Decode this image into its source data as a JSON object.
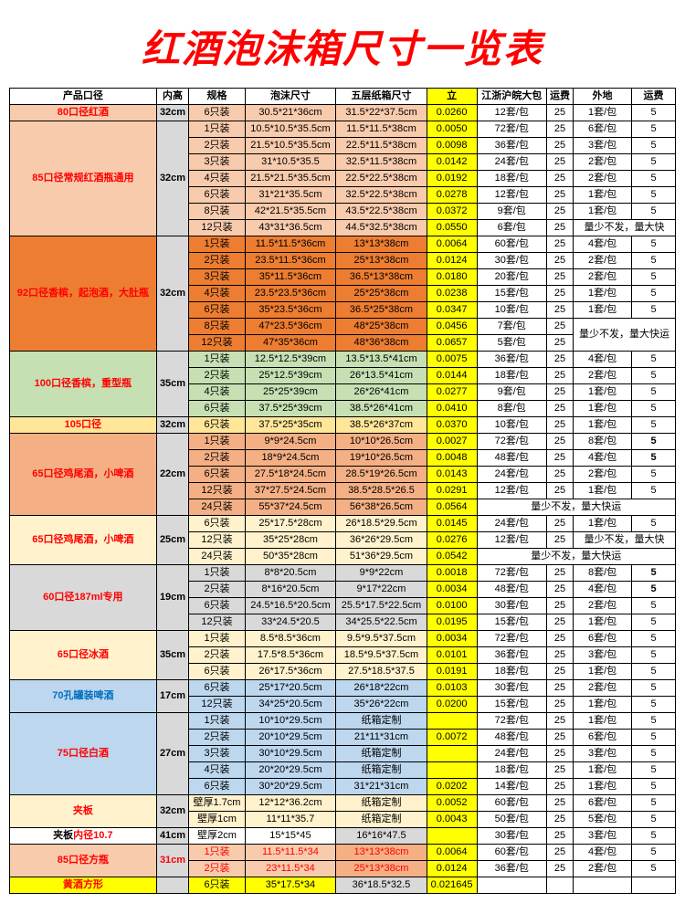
{
  "title": "红酒泡沫箱尺寸一览表",
  "headers": [
    "产品口径",
    "内高",
    "规格",
    "泡沫尺寸",
    "五层纸箱尺寸",
    "立",
    "江浙沪皖大包",
    "运费",
    "外地",
    "运费"
  ],
  "colors": {
    "title": "#ff0000",
    "yellow": "#ffff00",
    "pink": "#f8cbad",
    "orange": "#ed7d31",
    "green": "#c6e0b4",
    "tan": "#fff2cc",
    "gold": "#f4b084",
    "gray": "#d9d9d9",
    "blue": "#bdd7ee"
  },
  "groups": [
    {
      "cat": "80口径红酒",
      "catBg": "bg-pink",
      "height": "32cm",
      "rows": [
        {
          "spec": "6只装",
          "foam": "30.5*21*36cm",
          "box": "31.5*22*37.5cm",
          "vol": "0.0260",
          "pack": "12套/包",
          "fee1": "25",
          "out": "1套/包",
          "fee2": "5"
        }
      ]
    },
    {
      "cat": "85口径常规红酒瓶通用",
      "catBg": "bg-pink",
      "height": "32cm",
      "rows": [
        {
          "spec": "1只装",
          "foam": "10.5*10.5*35.5cm",
          "box": "11.5*11.5*38cm",
          "vol": "0.0050",
          "pack": "72套/包",
          "fee1": "25",
          "out": "6套/包",
          "fee2": "5"
        },
        {
          "spec": "2只装",
          "foam": "21.5*10.5*35.5cm",
          "box": "22.5*11.5*38cm",
          "vol": "0.0098",
          "pack": "36套/包",
          "fee1": "25",
          "out": "3套/包",
          "fee2": "5"
        },
        {
          "spec": "3只装",
          "foam": "31*10.5*35.5",
          "box": "32.5*11.5*38cm",
          "vol": "0.0142",
          "pack": "24套/包",
          "fee1": "25",
          "out": "2套/包",
          "fee2": "5"
        },
        {
          "spec": "4只装",
          "foam": "21.5*21.5*35.5cm",
          "box": "22.5*22.5*38cm",
          "vol": "0.0192",
          "pack": "18套/包",
          "fee1": "25",
          "out": "2套/包",
          "fee2": "5"
        },
        {
          "spec": "6只装",
          "foam": "31*21*35.5cm",
          "box": "32.5*22.5*38cm",
          "vol": "0.0278",
          "pack": "12套/包",
          "fee1": "25",
          "out": "1套/包",
          "fee2": "5"
        },
        {
          "spec": "8只装",
          "foam": "42*21.5*35.5cm",
          "box": "43.5*22.5*38cm",
          "vol": "0.0372",
          "pack": "9套/包",
          "fee1": "25",
          "out": "1套/包",
          "fee2": "5"
        },
        {
          "spec": "12只装",
          "foam": "43*31*36.5cm",
          "box": "44.5*32.5*38cm",
          "vol": "0.0550",
          "pack": "6套/包",
          "fee1": "25",
          "out": "量少不发，量大快",
          "fee2": "",
          "outSpan": 2
        }
      ]
    },
    {
      "cat": "92口径香槟，起泡酒，大肚瓶",
      "catBg": "bg-orange",
      "height": "32cm",
      "rows": [
        {
          "spec": "1只装",
          "foam": "11.5*11.5*36cm",
          "box": "13*13*38cm",
          "vol": "0.0064",
          "pack": "60套/包",
          "fee1": "25",
          "out": "4套/包",
          "fee2": "5"
        },
        {
          "spec": "2只装",
          "foam": "23.5*11.5*36cm",
          "box": "25*13*38cm",
          "vol": "0.0124",
          "pack": "30套/包",
          "fee1": "25",
          "out": "2套/包",
          "fee2": "5"
        },
        {
          "spec": "3只装",
          "foam": "35*11.5*36cm",
          "box": "36.5*13*38cm",
          "vol": "0.0180",
          "pack": "20套/包",
          "fee1": "25",
          "out": "2套/包",
          "fee2": "5"
        },
        {
          "spec": "4只装",
          "foam": "23.5*23.5*36cm",
          "box": "25*25*38cm",
          "vol": "0.0238",
          "pack": "15套/包",
          "fee1": "25",
          "out": "1套/包",
          "fee2": "5"
        },
        {
          "spec": "6只装",
          "foam": "35*23.5*36cm",
          "box": "36.5*25*38cm",
          "vol": "0.0347",
          "pack": "10套/包",
          "fee1": "25",
          "out": "1套/包",
          "fee2": "5"
        },
        {
          "spec": "8只装",
          "foam": "47*23.5*36cm",
          "box": "48*25*38cm",
          "vol": "0.0456",
          "pack": "7套/包",
          "fee1": "25",
          "out": "量少不发，量大快运",
          "fee2": "",
          "outSpan": 2,
          "outRowSpan": 2
        },
        {
          "spec": "12只装",
          "foam": "47*35*36cm",
          "box": "48*36*38cm",
          "vol": "0.0657",
          "pack": "5套/包",
          "fee1": "25",
          "noOut": true
        }
      ]
    },
    {
      "cat": "100口径香槟，重型瓶",
      "catBg": "bg-green",
      "height": "35cm",
      "rows": [
        {
          "spec": "1只装",
          "foam": "12.5*12.5*39cm",
          "box": "13.5*13.5*41cm",
          "vol": "0.0075",
          "pack": "36套/包",
          "fee1": "25",
          "out": "4套/包",
          "fee2": "5"
        },
        {
          "spec": "2只装",
          "foam": "25*12.5*39cm",
          "box": "26*13.5*41cm",
          "vol": "0.0144",
          "pack": "18套/包",
          "fee1": "25",
          "out": "2套/包",
          "fee2": "5"
        },
        {
          "spec": "4只装",
          "foam": "25*25*39cm",
          "box": "26*26*41cm",
          "vol": "0.0277",
          "pack": "9套/包",
          "fee1": "25",
          "out": "1套/包",
          "fee2": "5"
        },
        {
          "spec": "6只装",
          "foam": "37.5*25*39cm",
          "box": "38.5*26*41cm",
          "vol": "0.0410",
          "pack": "8套/包",
          "fee1": "25",
          "out": "1套/包",
          "fee2": "5"
        }
      ]
    },
    {
      "cat": "105口径",
      "catBg": "bg-yel2",
      "height": "32cm",
      "rows": [
        {
          "spec": "6只装",
          "foam": "37.5*25*35cm",
          "box": "38.5*26*37cm",
          "vol": "0.0370",
          "pack": "10套/包",
          "fee1": "25",
          "out": "1套/包",
          "fee2": "5"
        }
      ]
    },
    {
      "cat": "65口径鸡尾酒，小啤酒",
      "catBg": "bg-gold",
      "height": "22cm",
      "rows": [
        {
          "spec": "1只装",
          "foam": "9*9*24.5cm",
          "box": "10*10*26.5cm",
          "vol": "0.0027",
          "pack": "72套/包",
          "fee1": "25",
          "out": "8套/包",
          "fee2": "5",
          "fee2Bold": true
        },
        {
          "spec": "2只装",
          "foam": "18*9*24.5cm",
          "box": "19*10*26.5cm",
          "vol": "0.0048",
          "pack": "48套/包",
          "fee1": "25",
          "out": "4套/包",
          "fee2": "5",
          "fee2Bold": true
        },
        {
          "spec": "6只装",
          "foam": "27.5*18*24.5cm",
          "box": "28.5*19*26.5cm",
          "vol": "0.0143",
          "pack": "24套/包",
          "fee1": "25",
          "out": "2套/包",
          "fee2": "5"
        },
        {
          "spec": "12只装",
          "foam": "37*27.5*24.5cm",
          "box": "38.5*28.5*26.5",
          "vol": "0.0291",
          "pack": "12套/包",
          "fee1": "25",
          "out": "1套/包",
          "fee2": "5"
        },
        {
          "spec": "24只装",
          "foam": "55*37*24.5cm",
          "box": "56*38*26.5cm",
          "vol": "0.0564",
          "pack": "量少不发，量大快运",
          "fee1": "",
          "out": "",
          "fee2": "",
          "packSpan": 4
        }
      ]
    },
    {
      "cat": "65口径鸡尾酒，小啤酒",
      "catBg": "bg-tan",
      "height": "25cm",
      "rows": [
        {
          "spec": "6只装",
          "foam": "25*17.5*28cm",
          "box": "26*18.5*29.5cm",
          "vol": "0.0145",
          "pack": "24套/包",
          "fee1": "25",
          "out": "1套/包",
          "fee2": "5"
        },
        {
          "spec": "12只装",
          "foam": "35*25*28cm",
          "box": "36*26*29.5cm",
          "vol": "0.0276",
          "pack": "12套/包",
          "fee1": "25",
          "out": "量少不发，量大快",
          "fee2": "",
          "outSpan": 2
        },
        {
          "spec": "24只装",
          "foam": "50*35*28cm",
          "box": "51*36*29.5cm",
          "vol": "0.0542",
          "pack": "量少不发，量大快运",
          "fee1": "",
          "out": "",
          "fee2": "",
          "packSpan": 4
        }
      ]
    },
    {
      "cat": "60口径187ml专用",
      "catBg": "bg-gray",
      "height": "19cm",
      "rows": [
        {
          "spec": "1只装",
          "foam": "8*8*20.5cm",
          "box": "9*9*22cm",
          "vol": "0.0018",
          "pack": "72套/包",
          "fee1": "25",
          "out": "8套/包",
          "fee2": "5",
          "fee2Bold": true
        },
        {
          "spec": "2只装",
          "foam": "8*16*20.5cm",
          "box": "9*17*22cm",
          "vol": "0.0034",
          "pack": "48套/包",
          "fee1": "25",
          "out": "4套/包",
          "fee2": "5",
          "fee2Bold": true
        },
        {
          "spec": "6只装",
          "foam": "24.5*16.5*20.5cm",
          "box": "25.5*17.5*22.5cm",
          "vol": "0.0100",
          "pack": "30套/包",
          "fee1": "25",
          "out": "2套/包",
          "fee2": "5"
        },
        {
          "spec": "12只装",
          "foam": "33*24.5*20.5",
          "box": "34*25.5*22.5cm",
          "vol": "0.0195",
          "pack": "15套/包",
          "fee1": "25",
          "out": "1套/包",
          "fee2": "5"
        }
      ]
    },
    {
      "cat": "65口径冰酒",
      "catBg": "bg-tan",
      "height": "35cm",
      "rows": [
        {
          "spec": "1只装",
          "foam": "8.5*8.5*36cm",
          "box": "9.5*9.5*37.5cm",
          "vol": "0.0034",
          "pack": "72套/包",
          "fee1": "25",
          "out": "6套/包",
          "fee2": "5"
        },
        {
          "spec": "2只装",
          "foam": "17.5*8.5*36cm",
          "box": "18.5*9.5*37.5cm",
          "vol": "0.0101",
          "pack": "36套/包",
          "fee1": "25",
          "out": "3套/包",
          "fee2": "5"
        },
        {
          "spec": "6只装",
          "foam": "26*17.5*36cm",
          "box": "27.5*18.5*37.5",
          "vol": "0.0191",
          "pack": "18套/包",
          "fee1": "25",
          "out": "1套/包",
          "fee2": "5"
        }
      ]
    },
    {
      "cat": "70孔罐装啤酒",
      "catBg": "bg-blue",
      "height": "17cm",
      "catBlue": true,
      "rows": [
        {
          "spec": "6只装",
          "foam": "25*17*20.5cm",
          "box": "26*18*22cm",
          "vol": "0.0103",
          "pack": "30套/包",
          "fee1": "25",
          "out": "2套/包",
          "fee2": "5"
        },
        {
          "spec": "12只装",
          "foam": "34*25*20.5cm",
          "box": "35*26*22cm",
          "vol": "0.0200",
          "pack": "15套/包",
          "fee1": "25",
          "out": "1套/包",
          "fee2": "5"
        }
      ]
    },
    {
      "cat": "75口径白酒",
      "catBg": "bg-blue",
      "height": "27cm",
      "rows": [
        {
          "spec": "1只装",
          "foam": "10*10*29.5cm",
          "box": "纸箱定制",
          "vol": "",
          "pack": "72套/包",
          "fee1": "25",
          "out": "1套/包",
          "fee2": "5"
        },
        {
          "spec": "2只装",
          "foam": "20*10*29.5cm",
          "box": "21*11*31cm",
          "vol": "0.0072",
          "pack": "48套/包",
          "fee1": "25",
          "out": "6套/包",
          "fee2": "5"
        },
        {
          "spec": "3只装",
          "foam": "30*10*29.5cm",
          "box": "纸箱定制",
          "vol": "",
          "pack": "24套/包",
          "fee1": "25",
          "out": "3套/包",
          "fee2": "5"
        },
        {
          "spec": "4只装",
          "foam": "20*20*29.5cm",
          "box": "纸箱定制",
          "vol": "",
          "pack": "18套/包",
          "fee1": "25",
          "out": "1套/包",
          "fee2": "5"
        },
        {
          "spec": "6只装",
          "foam": "30*20*29.5cm",
          "box": "31*21*31cm",
          "vol": "0.0202",
          "pack": "14套/包",
          "fee1": "25",
          "out": "1套/包",
          "fee2": "5"
        }
      ]
    },
    {
      "cat": "夹板",
      "catBg": "bg-cream",
      "height": "32cm",
      "rows": [
        {
          "spec": "壁厚1.7cm",
          "foam": "12*12*36.2cm",
          "box": "纸箱定制",
          "vol": "0.0052",
          "pack": "60套/包",
          "fee1": "25",
          "out": "6套/包",
          "fee2": "5"
        },
        {
          "spec": "壁厚1cm",
          "foam": "11*11*35.7",
          "box": "纸箱定制",
          "vol": "0.0043",
          "pack": "50套/包",
          "fee1": "25",
          "out": "5套/包",
          "fee2": "5"
        }
      ]
    },
    {
      "cat": "夹板内径10.7",
      "catBg": "",
      "height": "41cm",
      "catPartRed": true,
      "rows": [
        {
          "spec": "壁厚2cm",
          "foam": "15*15*45",
          "box": "16*16*47.5",
          "vol": "",
          "pack": "30套/包",
          "fee1": "25",
          "out": "3套/包",
          "fee2": "5",
          "boxGray": true
        }
      ]
    },
    {
      "cat": "85口径方瓶",
      "catBg": "bg-red2",
      "height": "31cm",
      "heightRed": true,
      "rows": [
        {
          "spec": "1只装",
          "foam": "11.5*11.5*34",
          "box": "13*13*38cm",
          "vol": "0.0064",
          "pack": "60套/包",
          "fee1": "25",
          "out": "4套/包",
          "fee2": "5",
          "specRed": true,
          "foamRed": true,
          "boxGold": true
        },
        {
          "spec": "2只装",
          "foam": "23*11.5*34",
          "box": "25*13*38cm",
          "vol": "0.0124",
          "pack": "36套/包",
          "fee1": "25",
          "out": "2套/包",
          "fee2": "5",
          "specRed": true,
          "foamRed": true,
          "boxGold": true
        }
      ]
    },
    {
      "cat": "黄酒方形",
      "catBg": "bg-ylw3",
      "height": "",
      "rows": [
        {
          "spec": "6只装",
          "foam": "35*17.5*34",
          "box": "36*18.5*32.5",
          "vol": "0.021645",
          "pack": "",
          "fee1": "",
          "out": "",
          "fee2": "",
          "boxGray": true
        }
      ]
    }
  ]
}
